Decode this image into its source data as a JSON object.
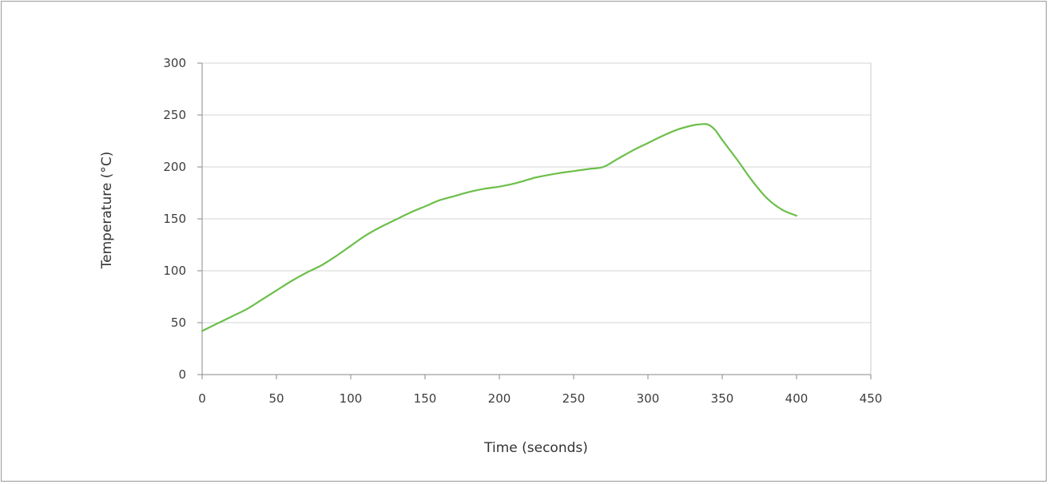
{
  "chart_data": {
    "type": "line",
    "title": "",
    "xlabel": "Time (seconds)",
    "ylabel": "Temperature (°C)",
    "xlim": [
      0,
      450
    ],
    "ylim": [
      0,
      300
    ],
    "x_ticks": [
      "0",
      "50",
      "100",
      "150",
      "200",
      "250",
      "300",
      "350",
      "400",
      "450"
    ],
    "y_ticks": [
      "0",
      "50",
      "100",
      "150",
      "200",
      "250",
      "300"
    ],
    "grid": "horizontal",
    "legend": "none",
    "series": [
      {
        "color": "#6cbf4a",
        "x": [
          0,
          10,
          20,
          30,
          40,
          50,
          60,
          70,
          80,
          90,
          100,
          110,
          120,
          130,
          140,
          150,
          160,
          170,
          180,
          190,
          200,
          210,
          220,
          225,
          240,
          250,
          260,
          270,
          280,
          290,
          300,
          310,
          320,
          330,
          335,
          340,
          345,
          350,
          360,
          370,
          380,
          390,
          400
        ],
        "y": [
          42,
          49,
          56,
          63,
          72,
          81,
          90,
          98,
          105,
          114,
          124,
          134,
          142,
          149,
          156,
          162,
          168,
          172,
          176,
          179,
          181,
          184,
          188,
          190,
          194,
          196,
          198,
          200,
          208,
          216,
          223,
          230,
          236,
          240,
          241,
          241,
          236,
          226,
          207,
          187,
          170,
          159,
          153
        ]
      }
    ]
  }
}
